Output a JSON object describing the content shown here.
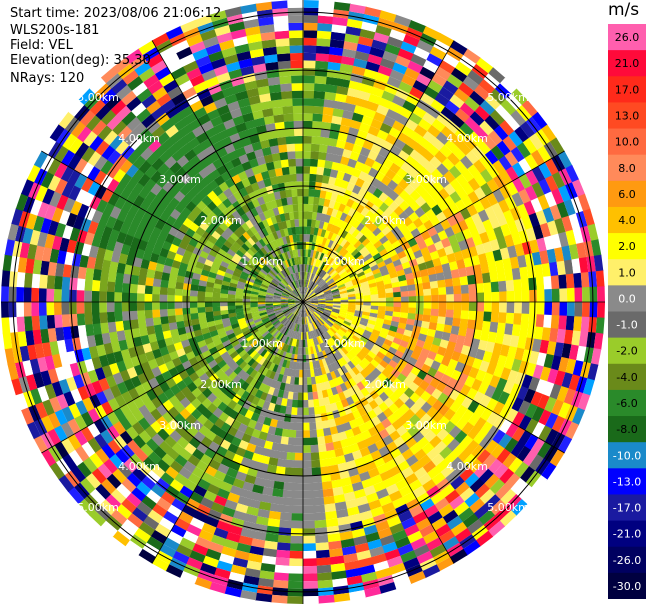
{
  "header": {
    "start_time": "Start time: 2023/08/06 21:06:12",
    "instrument": "WLS200s-181",
    "field": "Field: VEL",
    "elevation": "Elevation(deg): 35.30",
    "nrays": "NRays: 120"
  },
  "colorbar": {
    "unit": "m/s",
    "ticks": [
      "26.0",
      "21.0",
      "17.0",
      "13.0",
      "10.0",
      "8.0",
      "6.0",
      "4.0",
      "2.0",
      "1.0",
      "0.0",
      "-1.0",
      "-2.0",
      "-4.0",
      "-6.0",
      "-8.0",
      "-10.0",
      "-13.0",
      "-17.0",
      "-21.0",
      "-26.0",
      "-30.0"
    ],
    "colors": [
      "#ff5fae",
      "#ff0a3a",
      "#ff2a1a",
      "#ff4a22",
      "#ff6a40",
      "#ff8a5a",
      "#ff9a10",
      "#ffc000",
      "#ffff00",
      "#fff06a",
      "#8a8a8a",
      "#6a6a6a",
      "#9acc2a",
      "#6a8a1a",
      "#2a8a2a",
      "#1a6a1a",
      "#1a8aca",
      "#0000ff",
      "#1a1aa0",
      "#000080",
      "#000060",
      "#000040"
    ]
  },
  "range_ring_labels": [
    "1.00km",
    "2.00km",
    "3.00km",
    "4.00km",
    "5.00km"
  ],
  "chart_data": {
    "type": "heatmap",
    "projection": "polar PPI",
    "field": "VEL",
    "units": "m/s",
    "n_rays": 120,
    "elevation_deg": 35.3,
    "range_rings_km": [
      1,
      2,
      3,
      4,
      5
    ],
    "max_range_km": 5.0,
    "value_range": [
      -30.0,
      26.0
    ],
    "pattern_regions": [
      {
        "sector": "northwest",
        "range_km": [
          0,
          3.5
        ],
        "dominant_velocity_ms": -2.0
      },
      {
        "sector": "east",
        "range_km": [
          0,
          3.5
        ],
        "dominant_velocity_ms": 3.0
      },
      {
        "sector": "south",
        "range_km": [
          0,
          3.5
        ],
        "dominant_velocity_ms": 2.0
      },
      {
        "sector": "near center",
        "range_km": [
          0,
          0.7
        ],
        "dominant_velocity_ms": 0.0
      },
      {
        "sector": "all",
        "range_km": [
          3.5,
          5.0
        ],
        "dominant_velocity_ms": "noise"
      }
    ]
  }
}
